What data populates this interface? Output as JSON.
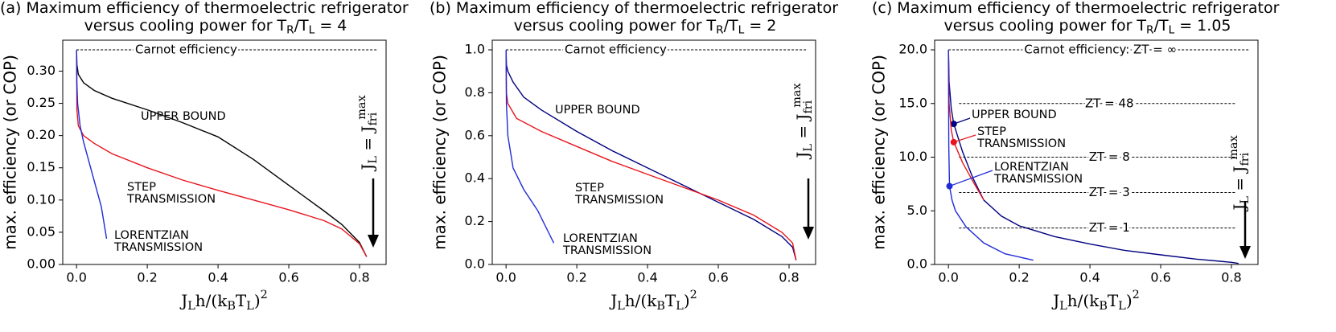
{
  "chart_data": [
    {
      "type": "line",
      "title": [
        "(a) Maximum efficiency of thermoelectric refrigerator",
        "versus cooling power for T_{R}/T_{L} = 4"
      ],
      "xlabel": "J_{L}h/(k_{B}T_{L})^{2}",
      "ylabel": "max. efficiency (or COP)",
      "xlim": [
        -0.039,
        0.875
      ],
      "ylim": [
        0,
        0.348
      ],
      "xticks": [
        {
          "value": 0,
          "label": "0.0"
        },
        0.2,
        0.4,
        0.6,
        0.8
      ],
      "yticks": [
        {
          "value": 0,
          "label": "0.00"
        },
        0.05,
        {
          "value": 0.1,
          "label": "0.10"
        },
        0.15,
        {
          "value": 0.2,
          "label": "0.20"
        },
        0.25,
        {
          "value": 0.3,
          "label": "0.30"
        }
      ],
      "hlines": [
        {
          "value": 0.333,
          "label": "Carnot efficiency"
        }
      ],
      "annotation": "J_{L} = J_{fri}^{max}",
      "series": [
        {
          "name": "UPPER BOUND",
          "color": "#000000",
          "x": [
            0,
            0.001,
            0.005,
            0.02,
            0.05,
            0.1,
            0.2,
            0.3,
            0.4,
            0.5,
            0.6,
            0.7,
            0.75,
            0.8,
            0.82
          ],
          "values": [
            0.333,
            0.31,
            0.295,
            0.282,
            0.27,
            0.258,
            0.24,
            0.22,
            0.198,
            0.163,
            0.123,
            0.083,
            0.062,
            0.034,
            0.012
          ]
        },
        {
          "name": "STEP TRANSMISSION",
          "color": "#e8141e",
          "x": [
            0,
            0.001,
            0.005,
            0.02,
            0.05,
            0.1,
            0.2,
            0.3,
            0.4,
            0.5,
            0.6,
            0.7,
            0.75,
            0.8,
            0.82
          ],
          "values": [
            0.333,
            0.24,
            0.215,
            0.2,
            0.188,
            0.172,
            0.15,
            0.131,
            0.115,
            0.1,
            0.085,
            0.068,
            0.055,
            0.032,
            0.012
          ]
        },
        {
          "name": "LORENTZIAN TRANSMISSION",
          "color": "#1f2ad8",
          "x": [
            0,
            0.001,
            0.003,
            0.01,
            0.02,
            0.03,
            0.05,
            0.07,
            0.085
          ],
          "values": [
            0.333,
            0.28,
            0.25,
            0.215,
            0.19,
            0.17,
            0.13,
            0.09,
            0.04
          ]
        }
      ]
    },
    {
      "type": "line",
      "title": [
        "(b) Maximum efficiency of thermoelectric refrigerator",
        "versus cooling power for T_{R}/T_{L} = 2"
      ],
      "xlabel": "J_{L}h/(k_{B}T_{L})^{2}",
      "ylabel": "max. efficiency (or COP)",
      "xlim": [
        -0.039,
        0.875
      ],
      "ylim": [
        0,
        1.045
      ],
      "xticks": [
        {
          "value": 0,
          "label": "0.0"
        },
        0.2,
        0.4,
        0.6,
        0.8
      ],
      "yticks": [
        {
          "value": 0,
          "label": "0.0"
        },
        0.2,
        0.4,
        0.6,
        0.8,
        {
          "value": 1,
          "label": "1.0"
        }
      ],
      "hlines": [
        {
          "value": 1,
          "label": "Carnot efficiency"
        }
      ],
      "annotation": "J_{L} = J_{fri}^{max}",
      "series": [
        {
          "name": "UPPER BOUND",
          "color": "#000080",
          "x": [
            0,
            0.001,
            0.005,
            0.02,
            0.05,
            0.1,
            0.2,
            0.3,
            0.4,
            0.5,
            0.6,
            0.7,
            0.78,
            0.81,
            0.82
          ],
          "values": [
            1,
            0.93,
            0.9,
            0.85,
            0.78,
            0.72,
            0.62,
            0.53,
            0.45,
            0.37,
            0.29,
            0.21,
            0.13,
            0.08,
            0.02
          ]
        },
        {
          "name": "STEP TRANSMISSION",
          "color": "#e8141e",
          "x": [
            0,
            0.001,
            0.005,
            0.03,
            0.1,
            0.2,
            0.3,
            0.4,
            0.5,
            0.6,
            0.7,
            0.78,
            0.81,
            0.82
          ],
          "values": [
            1,
            0.8,
            0.75,
            0.68,
            0.62,
            0.55,
            0.48,
            0.42,
            0.36,
            0.3,
            0.23,
            0.15,
            0.1,
            0.02
          ]
        },
        {
          "name": "LORENTZIAN TRANSMISSION",
          "color": "#1f2ad8",
          "x": [
            0,
            0.001,
            0.005,
            0.02,
            0.05,
            0.09,
            0.12,
            0.135
          ],
          "values": [
            1,
            0.75,
            0.6,
            0.45,
            0.35,
            0.25,
            0.15,
            0.1
          ]
        }
      ]
    },
    {
      "type": "line",
      "title": [
        "(c) Maximum efficiency of thermoelectric refrigerator",
        "versus cooling power for T_{R}/T_{L} = 1.05"
      ],
      "xlabel": "J_{L}h/(k_{B}T_{L})^{2}",
      "ylabel": "max. efficiency (or COP)",
      "xlim": [
        -0.039,
        0.875
      ],
      "ylim": [
        0,
        20.9
      ],
      "xticks": [
        {
          "value": 0,
          "label": "0.0"
        },
        0.2,
        0.4,
        0.6,
        0.8
      ],
      "yticks": [
        {
          "value": 0,
          "label": "0.0"
        },
        {
          "value": 5,
          "label": "5.0"
        },
        {
          "value": 10,
          "label": "10.0"
        },
        {
          "value": 15,
          "label": "15.0"
        },
        {
          "value": 20,
          "label": "20.0"
        }
      ],
      "hlines": [
        {
          "value": 20,
          "label": "Carnot efficiency: ZT = ∞"
        },
        {
          "value": 15,
          "label": "ZT = 48"
        },
        {
          "value": 10,
          "label": "ZT = 8"
        },
        {
          "value": 6.7,
          "label": "ZT = 3"
        },
        {
          "value": 3.4,
          "label": "ZT = 1"
        }
      ],
      "annotation": "J_{L} = J_{fri}^{max}",
      "series": [
        {
          "name": "UPPER BOUND",
          "color": "#000080",
          "marker": [
            0.015,
            13.1
          ],
          "x": [
            0,
            0.002,
            0.008,
            0.015,
            0.04,
            0.07,
            0.1,
            0.15,
            0.2,
            0.3,
            0.4,
            0.5,
            0.6,
            0.7,
            0.8,
            0.82
          ],
          "values": [
            20,
            17,
            14.5,
            13.1,
            10.5,
            8,
            6,
            4.5,
            3.6,
            2.6,
            1.9,
            1.3,
            0.9,
            0.5,
            0.2,
            0.1
          ]
        },
        {
          "name": "STEP TRANSMISSION",
          "color": "#e8141e",
          "marker": [
            0.015,
            11.4
          ],
          "x": [
            0,
            0.002,
            0.008,
            0.015,
            0.04,
            0.07,
            0.1
          ],
          "values": [
            20,
            15,
            12.5,
            11.4,
            9.5,
            7.7,
            6
          ]
        },
        {
          "name": "LORENTZIAN TRANSMISSION",
          "color": "#1f2ad8",
          "marker": [
            0.003,
            7.3
          ],
          "x": [
            0,
            0.001,
            0.003,
            0.01,
            0.02,
            0.05,
            0.1,
            0.16,
            0.24
          ],
          "values": [
            20,
            11,
            7.3,
            6,
            5,
            3.5,
            2,
            1,
            0.4
          ]
        }
      ]
    }
  ]
}
